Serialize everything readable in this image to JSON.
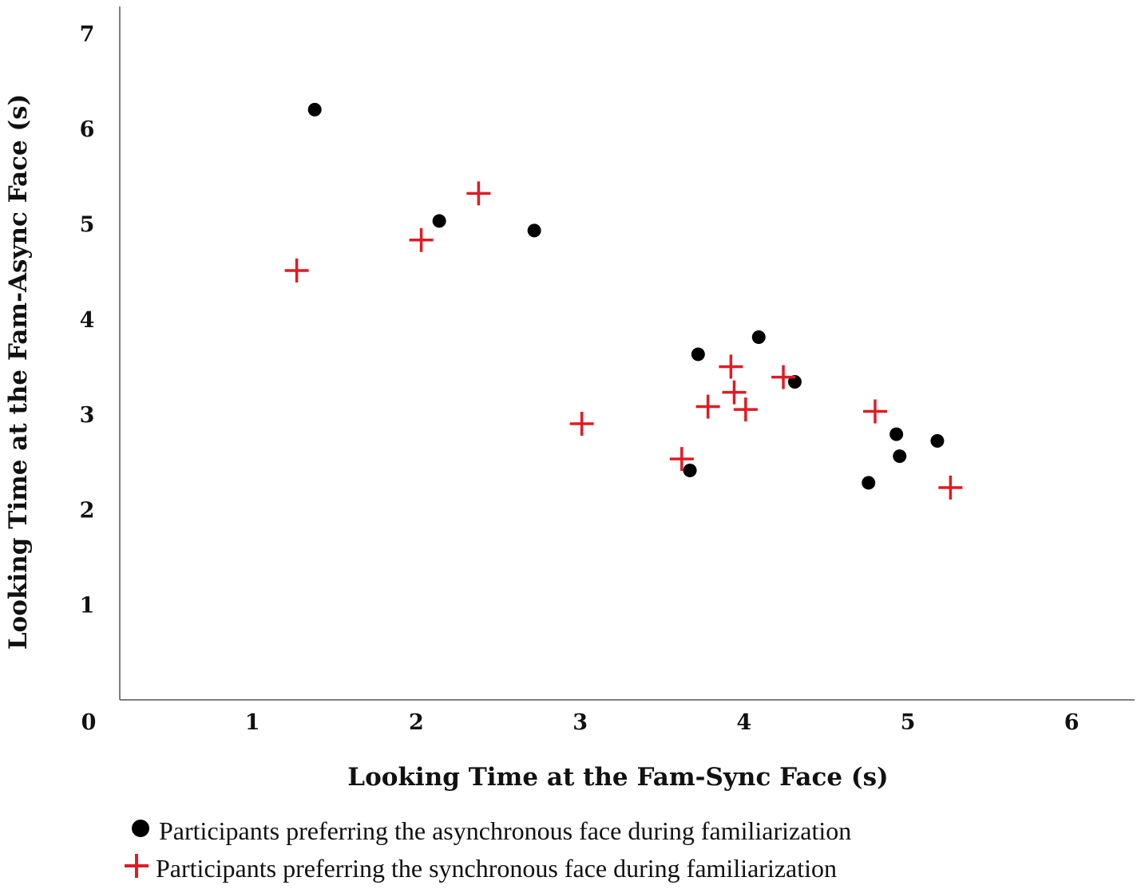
{
  "chart_data": {
    "type": "scatter",
    "title": "",
    "xlabel": "Looking Time at the Fam-Sync Face (s)",
    "ylabel": "Looking Time at the Fam-Async Face (s)",
    "xticks": [
      "0",
      "1",
      "2",
      "3",
      "4",
      "5",
      "6"
    ],
    "yticks": [
      "1",
      "2",
      "3",
      "4",
      "5",
      "6",
      "7"
    ],
    "xlim": [
      0,
      6.5
    ],
    "ylim": [
      0,
      7.3
    ],
    "grid": false,
    "legend_position": "bottom",
    "series": [
      {
        "name": "Participants preferring the asynchronous face during familiarization",
        "marker": "circle",
        "color": "#000000",
        "points": [
          {
            "x": 1.38,
            "y": 6.2
          },
          {
            "x": 2.14,
            "y": 5.03
          },
          {
            "x": 2.72,
            "y": 4.93
          },
          {
            "x": 3.72,
            "y": 3.63
          },
          {
            "x": 4.09,
            "y": 3.81
          },
          {
            "x": 4.31,
            "y": 3.34
          },
          {
            "x": 3.67,
            "y": 2.41
          },
          {
            "x": 4.93,
            "y": 2.79
          },
          {
            "x": 4.95,
            "y": 2.56
          },
          {
            "x": 5.18,
            "y": 2.72
          },
          {
            "x": 4.76,
            "y": 2.28
          }
        ]
      },
      {
        "name": "Participants preferring the synchronous face during familiarization",
        "marker": "plus",
        "color": "#e01b24",
        "points": [
          {
            "x": 1.27,
            "y": 4.51
          },
          {
            "x": 2.03,
            "y": 4.83
          },
          {
            "x": 2.38,
            "y": 5.32
          },
          {
            "x": 3.01,
            "y": 2.9
          },
          {
            "x": 3.62,
            "y": 2.53
          },
          {
            "x": 3.78,
            "y": 3.08
          },
          {
            "x": 3.92,
            "y": 3.5
          },
          {
            "x": 3.94,
            "y": 3.23
          },
          {
            "x": 4.01,
            "y": 3.05
          },
          {
            "x": 4.24,
            "y": 3.39
          },
          {
            "x": 4.8,
            "y": 3.03
          },
          {
            "x": 5.26,
            "y": 2.23
          }
        ]
      }
    ]
  }
}
